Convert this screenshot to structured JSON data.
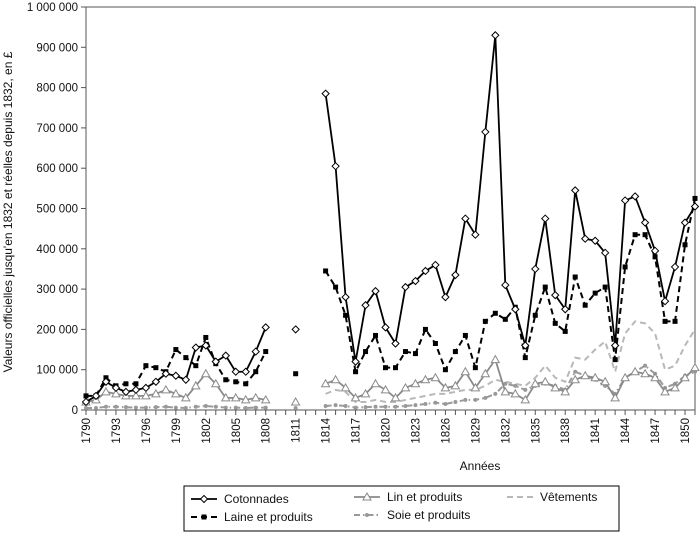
{
  "chart_data": {
    "type": "line",
    "xlabel": "Années",
    "ylabel": "Valeurs officielles jusqu'en 1832 et réelles depuis 1832, en £",
    "ylim": [
      0,
      1000000
    ],
    "yticks": [
      0,
      100000,
      200000,
      300000,
      400000,
      500000,
      600000,
      700000,
      800000,
      900000,
      1000000
    ],
    "ytick_labels": [
      "0",
      "100 000",
      "200 000",
      "300 000",
      "400 000",
      "500 000",
      "600 000",
      "700 000",
      "800 000",
      "900 000",
      "1 000 000"
    ],
    "xlim": [
      1790,
      1851
    ],
    "xticks": [
      1790,
      1793,
      1796,
      1799,
      1802,
      1805,
      1808,
      1811,
      1814,
      1817,
      1820,
      1823,
      1826,
      1829,
      1832,
      1835,
      1838,
      1841,
      1844,
      1847,
      1850
    ],
    "grid": false,
    "legend_position": "bottom",
    "series": [
      {
        "name": "Cotonnades",
        "color": "#000000",
        "style": "solid",
        "marker": "diamond",
        "segments": [
          {
            "x": [
              1790,
              1791,
              1792,
              1793,
              1794,
              1795,
              1796,
              1797,
              1798,
              1799,
              1800,
              1801,
              1802,
              1803,
              1804,
              1805,
              1806,
              1807,
              1808
            ],
            "y": [
              20000,
              35000,
              70000,
              55000,
              45000,
              50000,
              55000,
              70000,
              90000,
              85000,
              75000,
              155000,
              160000,
              120000,
              135000,
              95000,
              95000,
              145000,
              205000
            ]
          },
          {
            "x": [
              1811
            ],
            "y": [
              200000
            ]
          },
          {
            "x": [
              1814,
              1815,
              1816,
              1817,
              1818,
              1819,
              1820,
              1821,
              1822,
              1823,
              1824,
              1825,
              1826,
              1827,
              1828,
              1829,
              1830,
              1831,
              1832,
              1833,
              1834,
              1835,
              1836,
              1837,
              1838,
              1839,
              1840,
              1841,
              1842,
              1843,
              1844,
              1845,
              1846,
              1847,
              1848,
              1849,
              1850,
              1851
            ],
            "y": [
              785000,
              605000,
              280000,
              120000,
              260000,
              295000,
              205000,
              165000,
              305000,
              320000,
              345000,
              360000,
              280000,
              335000,
              475000,
              435000,
              690000,
              930000,
              310000,
              250000,
              160000,
              350000,
              475000,
              285000,
              250000,
              545000,
              425000,
              420000,
              390000,
              160000,
              520000,
              530000,
              465000,
              395000,
              270000,
              355000,
              465000,
              505000
            ]
          }
        ]
      },
      {
        "name": "Laine et produits",
        "color": "#000000",
        "style": "dashed",
        "marker": "square",
        "segments": [
          {
            "x": [
              1790,
              1791,
              1792,
              1793,
              1794,
              1795,
              1796,
              1797,
              1798,
              1799,
              1800,
              1801,
              1802,
              1803,
              1804,
              1805,
              1806,
              1807,
              1808
            ],
            "y": [
              35000,
              35000,
              80000,
              60000,
              65000,
              65000,
              110000,
              105000,
              95000,
              150000,
              130000,
              110000,
              180000,
              115000,
              75000,
              70000,
              65000,
              95000,
              145000
            ]
          },
          {
            "x": [
              1811
            ],
            "y": [
              90000
            ]
          },
          {
            "x": [
              1814,
              1815,
              1816,
              1817,
              1818,
              1819,
              1820,
              1821,
              1822,
              1823,
              1824,
              1825,
              1826,
              1827,
              1828,
              1829,
              1830,
              1831,
              1832,
              1833,
              1834,
              1835,
              1836,
              1837,
              1838,
              1839,
              1840,
              1841,
              1842,
              1843,
              1844,
              1845,
              1846,
              1847,
              1848,
              1849,
              1850,
              1851
            ],
            "y": [
              345000,
              305000,
              235000,
              95000,
              145000,
              185000,
              105000,
              105000,
              145000,
              140000,
              200000,
              165000,
              100000,
              145000,
              185000,
              105000,
              220000,
              240000,
              225000,
              255000,
              130000,
              235000,
              305000,
              215000,
              195000,
              330000,
              260000,
              290000,
              305000,
              125000,
              355000,
              435000,
              435000,
              380000,
              220000,
              220000,
              410000,
              525000
            ]
          }
        ]
      },
      {
        "name": "Lin et produits",
        "color": "#8a8a8a",
        "style": "solid",
        "marker": "triangle",
        "segments": [
          {
            "x": [
              1790,
              1791,
              1792,
              1793,
              1794,
              1795,
              1796,
              1797,
              1798,
              1799,
              1800,
              1801,
              1802,
              1803,
              1804,
              1805,
              1806,
              1807,
              1808
            ],
            "y": [
              20000,
              25000,
              45000,
              40000,
              35000,
              35000,
              35000,
              40000,
              50000,
              40000,
              30000,
              60000,
              90000,
              65000,
              30000,
              30000,
              25000,
              30000,
              25000
            ]
          },
          {
            "x": [
              1811
            ],
            "y": [
              20000
            ]
          },
          {
            "x": [
              1814,
              1815,
              1816,
              1817,
              1818,
              1819,
              1820,
              1821,
              1822,
              1823,
              1824,
              1825,
              1826,
              1827,
              1828,
              1829,
              1830,
              1831,
              1832,
              1833,
              1834,
              1835,
              1836,
              1837,
              1838,
              1839,
              1840,
              1841,
              1842,
              1843,
              1844,
              1845,
              1846,
              1847,
              1848,
              1849,
              1850,
              1851
            ],
            "y": [
              65000,
              75000,
              55000,
              30000,
              40000,
              65000,
              50000,
              30000,
              55000,
              65000,
              75000,
              80000,
              55000,
              60000,
              95000,
              55000,
              90000,
              125000,
              45000,
              40000,
              25000,
              65000,
              70000,
              55000,
              45000,
              75000,
              85000,
              80000,
              70000,
              30000,
              80000,
              95000,
              90000,
              80000,
              45000,
              55000,
              80000,
              105000
            ]
          }
        ]
      },
      {
        "name": "Vêtements",
        "color": "#b8b8b8",
        "style": "dashed",
        "marker": "none",
        "segments": [
          {
            "x": [
              1814,
              1815,
              1816,
              1817,
              1818,
              1819,
              1820,
              1821,
              1822,
              1823,
              1824,
              1825,
              1826,
              1827,
              1828,
              1829,
              1830,
              1831,
              1832,
              1833,
              1834,
              1835,
              1836,
              1837,
              1838,
              1839,
              1840,
              1841,
              1842,
              1843,
              1844,
              1845,
              1846,
              1847,
              1848,
              1849,
              1850,
              1851
            ],
            "y": [
              40000,
              50000,
              45000,
              20000,
              20000,
              25000,
              20000,
              20000,
              25000,
              30000,
              35000,
              40000,
              40000,
              45000,
              50000,
              50000,
              60000,
              75000,
              70000,
              65000,
              60000,
              80000,
              110000,
              80000,
              70000,
              130000,
              125000,
              150000,
              170000,
              95000,
              190000,
              220000,
              215000,
              190000,
              100000,
              110000,
              160000,
              200000
            ]
          }
        ]
      },
      {
        "name": "Soie et produits",
        "color": "#999999",
        "style": "dashdot",
        "marker": "circle",
        "segments": [
          {
            "x": [
              1790,
              1791,
              1792,
              1793,
              1794,
              1795,
              1796,
              1797,
              1798,
              1799,
              1800,
              1801,
              1802,
              1803,
              1804,
              1805,
              1806,
              1807,
              1808
            ],
            "y": [
              5000,
              5000,
              8000,
              8000,
              7000,
              6000,
              6000,
              7000,
              8000,
              6000,
              5000,
              8000,
              10000,
              8000,
              6000,
              6000,
              5000,
              6000,
              6000
            ]
          },
          {
            "x": [
              1811
            ],
            "y": [
              5000
            ]
          },
          {
            "x": [
              1814,
              1815,
              1816,
              1817,
              1818,
              1819,
              1820,
              1821,
              1822,
              1823,
              1824,
              1825,
              1826,
              1827,
              1828,
              1829,
              1830,
              1831,
              1832,
              1833,
              1834,
              1835,
              1836,
              1837,
              1838,
              1839,
              1840,
              1841,
              1842,
              1843,
              1844,
              1845,
              1846,
              1847,
              1848,
              1849,
              1850,
              1851
            ],
            "y": [
              10000,
              12000,
              10000,
              6000,
              7000,
              8000,
              8000,
              8000,
              10000,
              12000,
              15000,
              18000,
              15000,
              20000,
              25000,
              25000,
              30000,
              40000,
              65000,
              60000,
              50000,
              60000,
              65000,
              60000,
              50000,
              95000,
              85000,
              75000,
              60000,
              40000,
              80000,
              95000,
              110000,
              90000,
              55000,
              65000,
              85000,
              95000
            ]
          }
        ]
      }
    ]
  }
}
